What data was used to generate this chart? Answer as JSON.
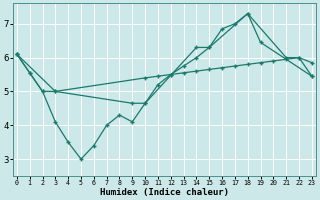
{
  "xlabel": "Humidex (Indice chaleur)",
  "background_color": "#cce8e8",
  "grid_color": "#b0d8d8",
  "line_color": "#1a7a6e",
  "x_ticks": [
    0,
    1,
    2,
    3,
    4,
    5,
    6,
    7,
    8,
    9,
    10,
    11,
    12,
    13,
    14,
    15,
    16,
    17,
    18,
    19,
    20,
    21,
    22,
    23
  ],
  "ylim": [
    2.5,
    7.6
  ],
  "xlim": [
    -0.3,
    23.3
  ],
  "yticks": [
    3,
    4,
    5,
    6,
    7
  ],
  "line1_x": [
    0,
    1,
    2,
    3,
    4,
    5,
    6,
    7,
    8,
    9,
    10,
    11,
    12,
    13,
    14,
    15,
    16,
    17,
    18,
    21,
    22,
    23
  ],
  "line1_y": [
    6.1,
    5.55,
    5.0,
    4.1,
    3.5,
    3.0,
    3.4,
    4.0,
    4.3,
    4.1,
    4.65,
    5.2,
    5.5,
    5.75,
    6.0,
    6.3,
    6.85,
    7.0,
    7.3,
    6.0,
    6.0,
    5.85
  ],
  "line2_x": [
    0,
    1,
    2,
    3,
    10,
    11,
    12,
    13,
    14,
    15,
    16,
    17,
    18,
    19,
    20,
    21,
    22,
    23
  ],
  "line2_y": [
    6.1,
    5.55,
    5.0,
    5.0,
    5.4,
    5.45,
    5.5,
    5.55,
    5.6,
    5.65,
    5.7,
    5.75,
    5.8,
    5.85,
    5.9,
    5.95,
    6.0,
    5.45
  ],
  "line3_x": [
    0,
    3,
    9,
    10,
    14,
    15,
    18,
    19,
    23
  ],
  "line3_y": [
    6.1,
    5.0,
    4.65,
    4.65,
    6.3,
    6.3,
    7.3,
    6.45,
    5.45
  ]
}
